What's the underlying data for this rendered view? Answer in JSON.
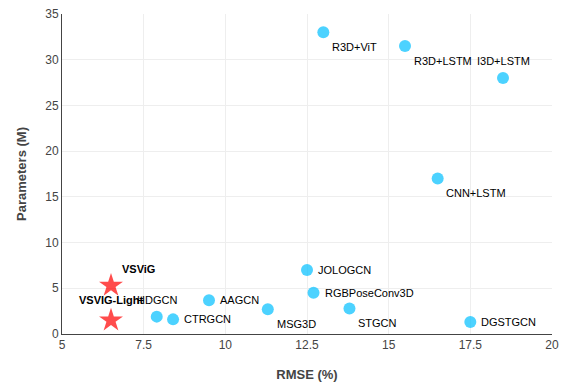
{
  "chart_data": {
    "type": "scatter",
    "xlabel": "RMSE (%)",
    "ylabel": "Parameters (M)",
    "points": [
      {
        "label": "R3D+ViT",
        "x": 13.0,
        "y": 33.0,
        "color": "#00BFFF",
        "marker": "circle"
      },
      {
        "label": "R3D+LSTM",
        "x": 15.5,
        "y": 31.5,
        "color": "#00BFFF",
        "marker": "circle"
      },
      {
        "label": "I3D+LSTM",
        "x": 18.5,
        "y": 28.0,
        "color": "#00BFFF",
        "marker": "circle"
      },
      {
        "label": "CNN+LSTM",
        "x": 16.5,
        "y": 17.0,
        "color": "#00BFFF",
        "marker": "circle"
      },
      {
        "label": "JOLOGCN",
        "x": 12.5,
        "y": 7.0,
        "color": "#00BFFF",
        "marker": "circle"
      },
      {
        "label": "RGBPoseConv3D",
        "x": 12.7,
        "y": 4.5,
        "color": "#00BFFF",
        "marker": "circle"
      },
      {
        "label": "AAGCN",
        "x": 9.5,
        "y": 3.7,
        "color": "#00BFFF",
        "marker": "circle"
      },
      {
        "label": "MSG3D",
        "x": 11.3,
        "y": 2.7,
        "color": "#00BFFF",
        "marker": "circle"
      },
      {
        "label": "HDGCN",
        "x": 7.9,
        "y": 1.9,
        "color": "#00BFFF",
        "marker": "circle"
      },
      {
        "label": "CTRGCN",
        "x": 8.4,
        "y": 1.6,
        "color": "#00BFFF",
        "marker": "circle"
      },
      {
        "label": "STGCN",
        "x": 13.8,
        "y": 2.8,
        "color": "#00BFFF",
        "marker": "circle"
      },
      {
        "label": "DGSTGCN",
        "x": 17.5,
        "y": 1.3,
        "color": "#00BFFF",
        "marker": "circle"
      },
      {
        "label": "VSViG",
        "x": 6.5,
        "y": 5.3,
        "color": "#FF0000",
        "marker": "star"
      },
      {
        "label": "VSVIG-Light",
        "x": 6.5,
        "y": 1.5,
        "color": "#FF0000",
        "marker": "star"
      }
    ],
    "xlim": [
      5.0,
      20.0
    ],
    "ylim": [
      0,
      35
    ],
    "xticks": [
      5.0,
      7.5,
      10.0,
      12.5,
      15.0,
      17.5,
      20.0
    ],
    "yticks": [
      0,
      5,
      10,
      15,
      20,
      25,
      30,
      35
    ],
    "grid": true
  }
}
